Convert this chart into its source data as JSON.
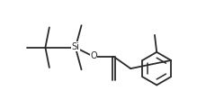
{
  "bg_color": "#ffffff",
  "line_color": "#2a2a2a",
  "line_width": 1.3,
  "text_color": "#2a2a2a",
  "font_size": 7
}
